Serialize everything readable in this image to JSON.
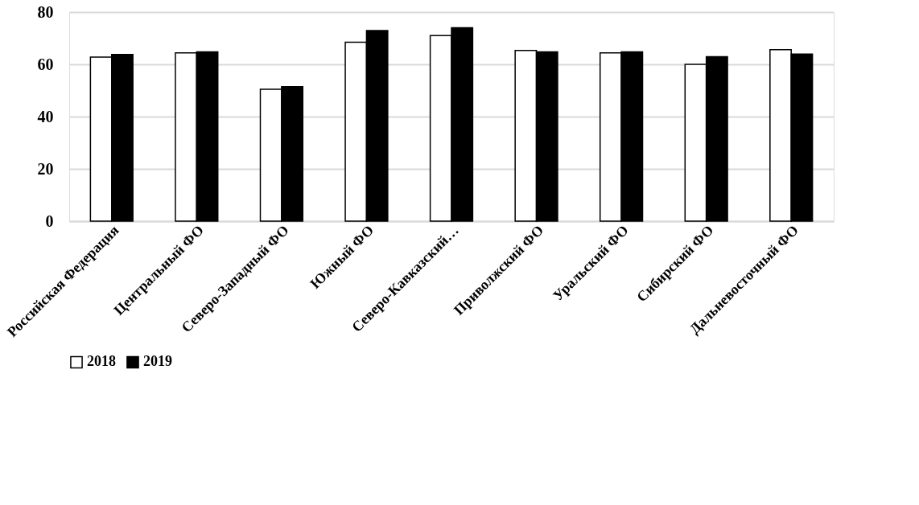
{
  "chart_data": {
    "type": "bar",
    "categories": [
      "Российская Федерация",
      "Центральный ФО",
      "Северо-Западный ФО",
      "Южный ФО",
      "Северо-Кавказский…",
      "Приволжский ФО",
      "Уральский ФО",
      "Сибирский ФО",
      "Дальневосточный ФО"
    ],
    "series": [
      {
        "name": "2018",
        "color": "#ffffff",
        "values": [
          62.8,
          64.4,
          50.5,
          68.5,
          71.0,
          65.3,
          64.4,
          60.0,
          65.6
        ]
      },
      {
        "name": "2019",
        "color": "#000000",
        "values": [
          63.8,
          64.8,
          51.5,
          72.9,
          74.0,
          64.8,
          64.8,
          62.9,
          63.9
        ]
      }
    ],
    "ylim": [
      0,
      80
    ],
    "yticks": [
      0,
      20,
      40,
      60,
      80
    ],
    "grid": "y",
    "legend": "bottom"
  }
}
